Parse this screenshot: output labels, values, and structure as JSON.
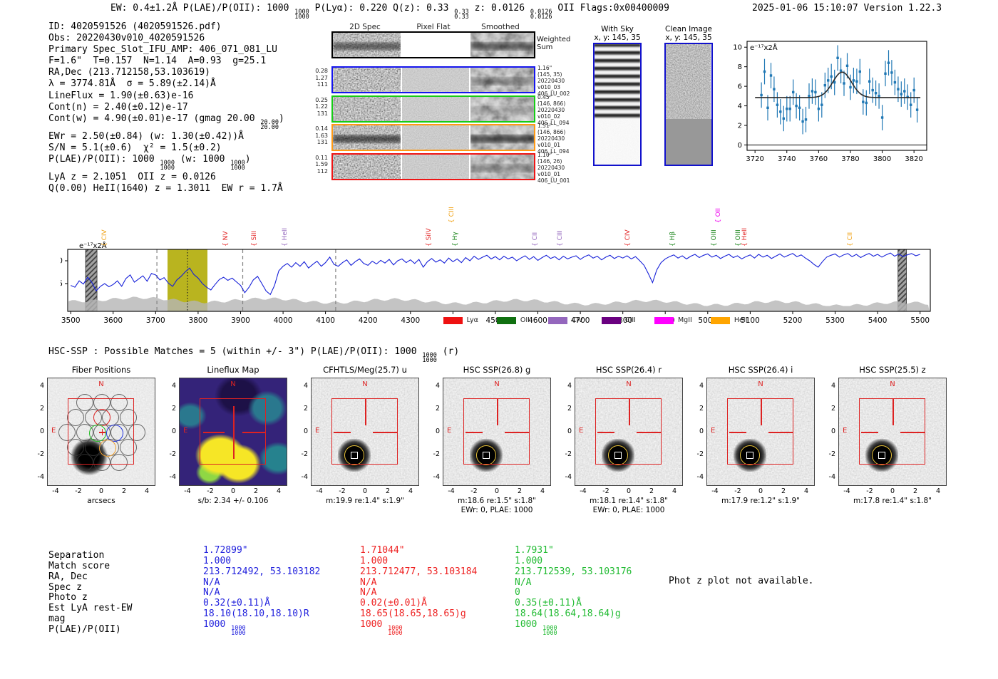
{
  "header": {
    "left_segments": [
      {
        "t": "EW: 0.4±1.2Å  P(LAE)/P(OII): 1000 "
      },
      {
        "f": [
          "1000",
          "1000"
        ]
      },
      {
        "t": "  P(Lyα): 0.220  Q(z): 0.33 "
      },
      {
        "f": [
          "0.33",
          "0.33"
        ]
      },
      {
        "t": "  z: 0.0126 "
      },
      {
        "f": [
          "0.0126",
          "0.0126"
        ]
      },
      {
        "t": " OII  Flags:0x00400009"
      }
    ],
    "datetime": "2025-01-06 15:10:07",
    "version": "Version 1.22.3"
  },
  "info_lines": [
    [
      {
        "t": "ID: 4020591526 (4020591526.pdf)"
      }
    ],
    [
      {
        "t": "Obs: 20220430v010_4020591526"
      }
    ],
    [
      {
        "t": "Primary Spec_Slot_IFU_AMP: 406_071_081_LU"
      }
    ],
    [
      {
        "t": "F=1.6\"  T=0.157  N=1.14  A=0.93  g=25.1"
      }
    ],
    [
      {
        "t": "RA,Dec (213.712158,53.103619)"
      }
    ],
    [
      {
        "t": "λ = 3774.81Å  σ = 5.89(±2.14)Å"
      }
    ],
    [
      {
        "t": "LineFlux = 1.90(±0.63)e-16"
      }
    ],
    [
      {
        "t": "Cont(n) = 2.40(±0.12)e-17"
      }
    ],
    [
      {
        "t": "Cont(w) = 4.90(±0.01)e-17 (gmag 20.00 "
      },
      {
        "f": [
          "20.00",
          "20.00"
        ]
      },
      {
        "t": ")"
      }
    ],
    [
      {
        "t": "EWr = 2.50(±0.84) (w: 1.30(±0.42))Å"
      }
    ],
    [
      {
        "t": "S/N = 5.1(±0.6)  χ² = 1.5(±0.2)"
      }
    ],
    [
      {
        "t": "P(LAE)/P(OII): 1000 "
      },
      {
        "f": [
          "1000",
          "1000"
        ]
      },
      {
        "t": " (w: 1000 "
      },
      {
        "f": [
          "1000",
          "1000"
        ]
      },
      {
        "t": ")"
      }
    ],
    [
      {
        "t": "LyA z = 2.1051  OII z = 0.0126"
      }
    ],
    [
      {
        "t": "Q(0.00) HeII(1640) z = 1.3011  EW r = 1.7Å"
      }
    ]
  ],
  "spec2d": {
    "col_headers": [
      "2D Spec",
      "Pixel Flat",
      "Smoothed"
    ],
    "weighted_label": [
      "Weighted",
      "Sum"
    ],
    "rows": [
      {
        "color": "#1515ee",
        "left": [
          "0.28",
          "1.27",
          "111"
        ],
        "right": [
          "1.16\"",
          "(145, 35)",
          "20220430",
          "v010_03",
          "406_LU_002"
        ]
      },
      {
        "color": "#16cc16",
        "left": [
          "0.25",
          "1.22",
          "131"
        ],
        "right": [
          "0.45\"",
          "(146, 866)",
          "20220430",
          "v010_02",
          "406_LL_094"
        ]
      },
      {
        "color": "#ff9914",
        "left": [
          "0.14",
          "1.63",
          "131"
        ],
        "right": [
          "1.51\"",
          "(146, 866)",
          "20220430",
          "v010_01",
          "406_LL_094"
        ]
      },
      {
        "color": "#ee1515",
        "left": [
          "0.11",
          "1.59",
          "112"
        ],
        "right": [
          "1.10\"",
          "(146, 26)",
          "20220430",
          "v010_01",
          "406_LU_001"
        ]
      }
    ]
  },
  "sky_panels": [
    {
      "title": "With Sky",
      "sub": "x, y: 145, 35"
    },
    {
      "title": "Clean Image",
      "sub": "x, y: 145, 35"
    }
  ],
  "hsc_line_segments": [
    {
      "t": "HSC-SSP : Possible Matches = 5 (within +/- 3\")  P(LAE)/P(OII): 1000 "
    },
    {
      "f": [
        "1000",
        "1000"
      ]
    },
    {
      "t": " (r)"
    }
  ],
  "chart_data": [
    {
      "type": "scatter",
      "inplot_label": "e⁻¹⁷x2Å",
      "x_start": 3724,
      "x_step": 2,
      "y": [
        5.1,
        7.5,
        3.8,
        7.1,
        5.7,
        4.1,
        3.4,
        2.7,
        3.7,
        3.7,
        5.4,
        4.0,
        3.8,
        2.4,
        2.6,
        5.0,
        5.5,
        5.4,
        3.7,
        4.1,
        6.1,
        6.6,
        7.0,
        6.4,
        8.9,
        7.6,
        6.3,
        8.1,
        5.9,
        6.6,
        6.5,
        7.5,
        4.4,
        4.3,
        6.5,
        5.6,
        5.3,
        5.0,
        2.8,
        7.3,
        8.4,
        7.4,
        6.4,
        5.7,
        5.2,
        5.5,
        4.9,
        4.1,
        5.6,
        3.6
      ],
      "yerr": 1.3,
      "fit": {
        "shape": "gaussian",
        "center": 3774.8,
        "sigma": 5.9,
        "baseline": 4.85,
        "amplitude": 2.6
      },
      "xticks": [
        3720,
        3740,
        3760,
        3780,
        3800,
        3820
      ],
      "yticks": [
        0,
        2,
        4,
        6,
        8,
        10
      ],
      "xlim": [
        3715,
        3828
      ],
      "ylim": [
        -0.55,
        10.6
      ],
      "point_color": "#1f77b4",
      "fit_color": "#2a2a2a"
    },
    {
      "type": "line",
      "inplot_label": "e⁻¹⁷x2Å",
      "x_start": 3500,
      "x_step": 10,
      "y": [
        4.6,
        4.2,
        5.6,
        4.9,
        6.4,
        5.2,
        3.4,
        4.4,
        5.0,
        4.3,
        4.8,
        5.6,
        4.4,
        6.1,
        6.9,
        5.3,
        6.0,
        6.7,
        5.5,
        7.2,
        6.9,
        5.8,
        6.3,
        5.1,
        4.4,
        5.8,
        6.6,
        7.6,
        8.4,
        7.0,
        6.2,
        5.0,
        4.2,
        3.6,
        4.8,
        5.9,
        6.4,
        5.7,
        6.2,
        5.4,
        4.6,
        3.0,
        4.2,
        5.8,
        6.6,
        5.0,
        3.4,
        2.6,
        4.6,
        7.8,
        8.8,
        9.4,
        8.6,
        9.6,
        8.8,
        9.8,
        8.4,
        9.2,
        9.9,
        8.8,
        9.6,
        10.8,
        9.2,
        8.8,
        9.6,
        10.2,
        9.0,
        9.8,
        10.4,
        9.4,
        9.0,
        9.9,
        9.3,
        10.1,
        9.5,
        10.3,
        9.1,
        10.0,
        10.4,
        9.6,
        10.2,
        9.4,
        10.3,
        8.6,
        9.8,
        10.5,
        9.7,
        10.2,
        9.5,
        10.6,
        9.8,
        10.4,
        9.6,
        10.7,
        10.0,
        11.0,
        10.3,
        10.8,
        11.2,
        10.4,
        10.9,
        10.2,
        11.0,
        10.4,
        10.8,
        10.0,
        10.6,
        11.1,
        10.3,
        10.9,
        10.1,
        10.7,
        11.2,
        10.5,
        10.9,
        10.2,
        11.0,
        10.4,
        10.8,
        11.1,
        10.3,
        10.9,
        11.3,
        10.6,
        11.0,
        10.2,
        10.8,
        11.2,
        10.5,
        11.0,
        10.6,
        11.1,
        10.4,
        10.9,
        10.0,
        9.0,
        7.2,
        5.2,
        8.0,
        9.6,
        10.4,
        10.9,
        11.3,
        10.6,
        11.1,
        10.4,
        11.0,
        11.4,
        10.7,
        11.2,
        11.5,
        10.8,
        11.2,
        10.5,
        11.0,
        11.4,
        10.7,
        11.1,
        10.4,
        10.9,
        11.3,
        10.6,
        11.4,
        10.8,
        11.2,
        10.5,
        11.0,
        11.5,
        10.8,
        11.2,
        11.6,
        10.9,
        11.3,
        10.6,
        10.0,
        9.2,
        8.6,
        9.8,
        10.8,
        11.2,
        11.5,
        10.8,
        11.3,
        11.6,
        10.9,
        11.4,
        10.7,
        11.2,
        11.6,
        11.0,
        11.4,
        10.8,
        11.3,
        11.7,
        11.0,
        11.5,
        10.9,
        11.3,
        11.6,
        11.1,
        11.4
      ],
      "xticks": [
        3500,
        3600,
        3700,
        3800,
        3900,
        4000,
        4100,
        4200,
        4300,
        4400,
        4500,
        4600,
        4700,
        4800,
        4900,
        5000,
        5100,
        5200,
        5300,
        5400,
        5500
      ],
      "yticks": [
        5,
        10
      ],
      "xlim": [
        3493,
        5524
      ],
      "ylim": [
        -1.09,
        12.5
      ],
      "line_color": "#1620d8",
      "highlight_band": [
        3728,
        3822
      ],
      "highlight_color": "#b9b41f",
      "hatched_bands": [
        [
          3535,
          3562
        ],
        [
          5448,
          5468
        ]
      ],
      "dashed_vlines": [
        3703,
        3905,
        4124
      ],
      "dotted_vline": 3775,
      "line_labels": [
        {
          "text": "CIV",
          "color": "#f0a010",
          "lambda": 3582,
          "row": 0
        },
        {
          "text": "NV",
          "color": "#e22222",
          "lambda": 3867,
          "row": 0
        },
        {
          "text": "SiII",
          "color": "#e22222",
          "lambda": 3934,
          "row": 0
        },
        {
          "text": "HeII",
          "color": "#9467bd",
          "lambda": 4005,
          "row": 0
        },
        {
          "text": "SiIV",
          "color": "#e22222",
          "lambda": 4345,
          "row": 0
        },
        {
          "text": "CIII",
          "color": "#f0a010",
          "lambda": 4399,
          "row": 1
        },
        {
          "text": "Hγ",
          "color": "#128012",
          "lambda": 4407,
          "row": 0
        },
        {
          "text": "CII",
          "color": "#9467bd",
          "lambda": 4595,
          "row": 0
        },
        {
          "text": "CIII",
          "color": "#9467bd",
          "lambda": 4654,
          "row": 0
        },
        {
          "text": "CIV",
          "color": "#e22222",
          "lambda": 4812,
          "row": 0
        },
        {
          "text": "Hβ",
          "color": "#128012",
          "lambda": 4919,
          "row": 0
        },
        {
          "text": "OIII",
          "color": "#128012",
          "lambda": 5016,
          "row": 0
        },
        {
          "text": "OII",
          "color": "#ee00ee",
          "lambda": 5026,
          "row": 1
        },
        {
          "text": "OIII",
          "color": "#128012",
          "lambda": 5073,
          "row": 0
        },
        {
          "text": "HeII",
          "color": "#e22222",
          "lambda": 5088,
          "row": 0
        },
        {
          "text": "CII",
          "color": "#f0a010",
          "lambda": 5337,
          "row": 0
        }
      ],
      "legend": [
        {
          "label": "Lyα",
          "color": "#ee1111"
        },
        {
          "label": "OII",
          "color": "#107010"
        },
        {
          "label": "CIV",
          "color": "#9467bd"
        },
        {
          "label": "CIII",
          "color": "#6a0080"
        },
        {
          "label": "MgII",
          "color": "#ff00ff"
        },
        {
          "label": "HeII",
          "color": "#ffa500"
        }
      ]
    }
  ],
  "cutouts": {
    "yticks": [
      4,
      2,
      0,
      -2,
      -4
    ],
    "xticks": [
      -4,
      -2,
      0,
      2,
      4
    ],
    "compass": {
      "n": "N",
      "e": "E"
    },
    "panels": [
      {
        "title": "Fiber Positions",
        "type": "fiber",
        "captions": [
          "arcsecs"
        ]
      },
      {
        "title": "Lineflux Map",
        "type": "lineflux",
        "captions": [
          "s/b: 2.34 +/- 0.106"
        ]
      },
      {
        "title": "CFHTLS/Meg(25.7) u",
        "type": "gray",
        "captions": [
          "m:19.9 re:1.4\" s:1.9\""
        ]
      },
      {
        "title": "HSC SSP(26.8) g",
        "type": "gray",
        "captions": [
          "m:18.6 re:1.5\" s:1.8\"",
          "EWr: 0, PLAE: 1000"
        ]
      },
      {
        "title": "HSC SSP(26.4) r",
        "type": "gray",
        "captions": [
          "m:18.1 re:1.4\" s:1.8\"",
          "EWr: 0, PLAE: 1000"
        ]
      },
      {
        "title": "HSC SSP(26.4) i",
        "type": "gray",
        "captions": [
          "m:17.9 re:1.2\" s:1.9\""
        ]
      },
      {
        "title": "HSC SSP(25.5) z",
        "type": "gray",
        "captions": [
          "m:17.8 re:1.4\" s:1.8\""
        ]
      }
    ]
  },
  "match_table": {
    "labels": [
      "Separation",
      "Match score",
      "RA, Dec",
      "Spec z",
      "Photo z",
      "Est LyA rest-EW",
      "mag",
      "P(LAE)/P(OII)"
    ],
    "columns": [
      {
        "color": "#2222dd",
        "values": [
          [
            "1.72899\""
          ],
          [
            "1.000"
          ],
          [
            "213.712492, 53.103182"
          ],
          [
            "N/A"
          ],
          [
            "N/A"
          ],
          [
            "0.32(±0.11)Å"
          ],
          [
            "18.10(18.10,18.10)R"
          ],
          [
            "1000 ",
            {
              "f": [
                "1000",
                "1000"
              ]
            }
          ]
        ]
      },
      {
        "color": "#ee2222",
        "values": [
          [
            "1.71044\""
          ],
          [
            "1.000"
          ],
          [
            "213.712477, 53.103184"
          ],
          [
            "N/A"
          ],
          [
            "N/A"
          ],
          [
            "0.02(±0.01)Å"
          ],
          [
            "18.65(18.65,18.65)g"
          ],
          [
            "1000 ",
            {
              "f": [
                "1000",
                "1000"
              ]
            }
          ]
        ]
      },
      {
        "color": "#22bb33",
        "values": [
          [
            "1.7931\""
          ],
          [
            "1.000"
          ],
          [
            "213.712539, 53.103176"
          ],
          [
            "N/A"
          ],
          [
            "0"
          ],
          [
            "0.35(±0.11)Å"
          ],
          [
            "18.64(18.64,18.64)g"
          ],
          [
            "1000 ",
            {
              "f": [
                "1000",
                "1000"
              ]
            }
          ]
        ]
      }
    ]
  },
  "photz_note": "Phot z plot not available."
}
